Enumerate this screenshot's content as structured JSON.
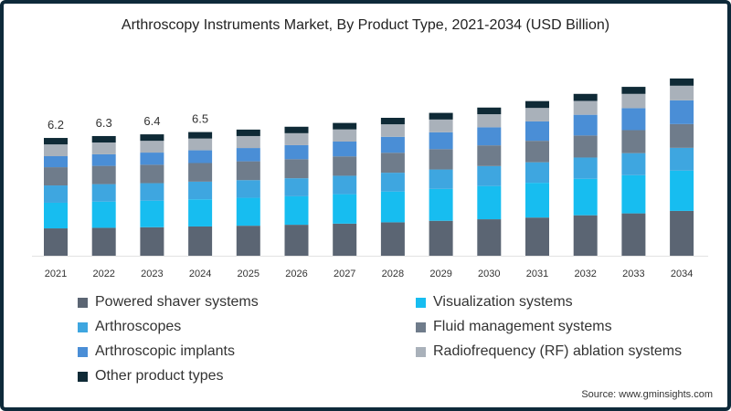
{
  "chart_data": {
    "type": "bar",
    "stacked": true,
    "title": "Arthroscopy Instruments Market, By Product Type, 2021-2034 (USD Billion)",
    "xlabel": "",
    "ylabel": "",
    "ylim": [
      0,
      10
    ],
    "grid": false,
    "legend_position": "bottom",
    "categories": [
      "2021",
      "2022",
      "2023",
      "2024",
      "2025",
      "2026",
      "2027",
      "2028",
      "2029",
      "2030",
      "2031",
      "2032",
      "2033",
      "2034"
    ],
    "total_labels": [
      "6.2",
      "6.3",
      "6.4",
      "6.5",
      "",
      "",
      "",
      "",
      "",
      "",
      "",
      "",
      "",
      ""
    ],
    "series": [
      {
        "name": "Powered shaver systems",
        "color": "#5b6573",
        "values": [
          1.44,
          1.47,
          1.5,
          1.54,
          1.58,
          1.63,
          1.69,
          1.76,
          1.84,
          1.92,
          2.01,
          2.13,
          2.23,
          2.36
        ]
      },
      {
        "name": "Visualization systems",
        "color": "#17bdf0",
        "values": [
          1.35,
          1.38,
          1.4,
          1.43,
          1.47,
          1.5,
          1.55,
          1.62,
          1.68,
          1.75,
          1.83,
          1.92,
          2.01,
          2.12
        ]
      },
      {
        "name": "Arthroscopes",
        "color": "#3ea6e0",
        "values": [
          0.91,
          0.92,
          0.92,
          0.93,
          0.93,
          0.95,
          0.97,
          0.99,
          1.02,
          1.05,
          1.08,
          1.12,
          1.16,
          1.2
        ]
      },
      {
        "name": "Fluid management systems",
        "color": "#6f7c8b",
        "values": [
          0.96,
          0.96,
          0.97,
          0.98,
          0.99,
          1.0,
          1.02,
          1.05,
          1.07,
          1.09,
          1.13,
          1.16,
          1.21,
          1.25
        ]
      },
      {
        "name": "Arthroscopic implants",
        "color": "#4a8ed6",
        "values": [
          0.58,
          0.61,
          0.64,
          0.67,
          0.7,
          0.74,
          0.78,
          0.84,
          0.89,
          0.95,
          1.02,
          1.09,
          1.16,
          1.25
        ]
      },
      {
        "name": "Radiofrequency (RF) ablation systems",
        "color": "#a9b1ba",
        "values": [
          0.62,
          0.62,
          0.62,
          0.62,
          0.63,
          0.63,
          0.64,
          0.66,
          0.67,
          0.69,
          0.71,
          0.73,
          0.75,
          0.77
        ]
      },
      {
        "name": "Other product types",
        "color": "#0f2a36",
        "values": [
          0.34,
          0.34,
          0.34,
          0.34,
          0.34,
          0.34,
          0.34,
          0.34,
          0.35,
          0.35,
          0.36,
          0.37,
          0.37,
          0.38
        ]
      }
    ]
  },
  "source": "Source: www.gminsights.com"
}
